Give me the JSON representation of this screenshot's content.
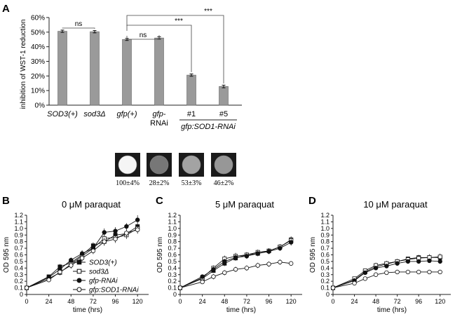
{
  "panels": {
    "A": "A",
    "B": "B",
    "C": "C",
    "D": "D"
  },
  "chart_data": [
    {
      "type": "bar",
      "id": "A",
      "title": "",
      "ylabel": "inhibition of WST-1 reduction",
      "ylim": [
        0,
        60
      ],
      "yticks": [
        "0%",
        "10%",
        "20%",
        "30%",
        "40%",
        "50%",
        "60%"
      ],
      "categories": [
        "SOD3(+)",
        "sod3Δ",
        "gfp(+)",
        "gfp-RNAi",
        "#1",
        "#5"
      ],
      "category_lines": [
        [
          "SOD3(+)"
        ],
        [
          "sod3Δ"
        ],
        [
          "gfp(+)"
        ],
        [
          "gfp-",
          "RNAi"
        ],
        [
          "#1"
        ],
        [
          "#5"
        ]
      ],
      "group_label": "gfp:SOD1-RNAi",
      "values": [
        50.6,
        50.3,
        45.0,
        46.0,
        20.6,
        12.8
      ],
      "errors": [
        0.8,
        0.8,
        0.7,
        0.8,
        0.8,
        0.9
      ],
      "significance": [
        {
          "from": 0,
          "to": 1,
          "label": "ns"
        },
        {
          "from": 2,
          "to": 3,
          "label": "ns"
        },
        {
          "from": 2,
          "to": 4,
          "label": "***"
        },
        {
          "from": 2,
          "to": 5,
          "label": "***"
        }
      ],
      "spot_values": [
        100,
        28,
        53,
        46
      ],
      "spot_labels": [
        "100±4%",
        "28±2%",
        "53±3%",
        "46±2%"
      ]
    },
    {
      "type": "line",
      "id": "B",
      "title": "0 μM paraquat",
      "xlabel": "time (hrs)",
      "ylabel": "OD 595 nm",
      "xlim": [
        0,
        132
      ],
      "ylim": [
        0,
        1.2
      ],
      "xticks": [
        0,
        24,
        48,
        72,
        96,
        120
      ],
      "yticks": [
        "0",
        "0.1",
        "0.2",
        "0.3",
        "0.4",
        "0.5",
        "0.6",
        "0.7",
        "0.8",
        "0.9",
        "1.0",
        "1.1",
        "1.2"
      ],
      "legend_position": "bottom-right",
      "x": [
        0,
        24,
        36,
        48,
        60,
        72,
        84,
        96,
        108,
        120
      ],
      "series": [
        {
          "name": "SOD3(+)",
          "marker": "filled-square",
          "values": [
            0.1,
            0.27,
            0.42,
            0.48,
            0.6,
            0.74,
            0.8,
            0.9,
            0.92,
            1.03
          ],
          "errors": [
            0.02,
            0.03,
            0.04,
            0.05,
            0.05,
            0.05,
            0.06,
            0.05,
            0.05,
            0.05
          ]
        },
        {
          "name": "sod3Δ",
          "marker": "open-square",
          "values": [
            0.1,
            0.24,
            0.33,
            0.46,
            0.58,
            0.7,
            0.85,
            0.86,
            0.9,
            1.0
          ],
          "errors": [
            0.02,
            0.03,
            0.04,
            0.04,
            0.05,
            0.05,
            0.06,
            0.06,
            0.06,
            0.06
          ]
        },
        {
          "name": "gfp-RNAi",
          "marker": "filled-circle",
          "values": [
            0.1,
            0.26,
            0.38,
            0.52,
            0.62,
            0.7,
            0.94,
            0.96,
            1.03,
            1.13
          ],
          "errors": [
            0.02,
            0.03,
            0.04,
            0.04,
            0.05,
            0.06,
            0.06,
            0.06,
            0.05,
            0.07
          ]
        },
        {
          "name": "gfp:SOD1-RNAi",
          "marker": "open-circle",
          "values": [
            0.1,
            0.22,
            0.34,
            0.44,
            0.55,
            0.66,
            0.8,
            0.84,
            0.93,
            0.98
          ],
          "errors": [
            0.02,
            0.03,
            0.04,
            0.05,
            0.05,
            0.05,
            0.06,
            0.06,
            0.06,
            0.06
          ]
        }
      ]
    },
    {
      "type": "line",
      "id": "C",
      "title": "5 μM paraquat",
      "xlabel": "time (hrs)",
      "ylabel": "OD 595 nm",
      "xlim": [
        0,
        132
      ],
      "ylim": [
        0,
        1.2
      ],
      "xticks": [
        0,
        24,
        48,
        72,
        96,
        120
      ],
      "yticks": [
        "0",
        "0.1",
        "0.2",
        "0.3",
        "0.4",
        "0.5",
        "0.6",
        "0.7",
        "0.8",
        "0.9",
        "1.0",
        "1.1",
        "1.2"
      ],
      "x": [
        0,
        24,
        36,
        48,
        60,
        72,
        84,
        96,
        108,
        120
      ],
      "series": [
        {
          "name": "SOD3(+)",
          "marker": "filled-square",
          "values": [
            0.1,
            0.24,
            0.36,
            0.47,
            0.55,
            0.6,
            0.62,
            0.66,
            0.72,
            0.83
          ],
          "errors": [
            0.02,
            0.03,
            0.03,
            0.04,
            0.04,
            0.04,
            0.04,
            0.04,
            0.04,
            0.05
          ]
        },
        {
          "name": "sod3Δ",
          "marker": "open-square",
          "values": [
            0.1,
            0.25,
            0.4,
            0.54,
            0.58,
            0.6,
            0.64,
            0.66,
            0.72,
            0.82
          ],
          "errors": [
            0.02,
            0.03,
            0.04,
            0.05,
            0.05,
            0.04,
            0.04,
            0.04,
            0.04,
            0.05
          ]
        },
        {
          "name": "gfp-RNAi",
          "marker": "filled-circle",
          "values": [
            0.1,
            0.27,
            0.38,
            0.5,
            0.56,
            0.58,
            0.62,
            0.65,
            0.7,
            0.79
          ],
          "errors": [
            0.02,
            0.03,
            0.04,
            0.04,
            0.04,
            0.04,
            0.04,
            0.04,
            0.04,
            0.05
          ]
        },
        {
          "name": "gfp:SOD1-RNAi",
          "marker": "open-circle",
          "values": [
            0.1,
            0.19,
            0.27,
            0.33,
            0.38,
            0.4,
            0.44,
            0.46,
            0.49,
            0.47
          ],
          "errors": [
            0.02,
            0.03,
            0.04,
            0.04,
            0.04,
            0.04,
            0.04,
            0.04,
            0.04,
            0.03
          ]
        }
      ]
    },
    {
      "type": "line",
      "id": "D",
      "title": "10 μM paraquat",
      "xlabel": "time (hrs)",
      "ylabel": "OD 595 nm",
      "xlim": [
        0,
        132
      ],
      "ylim": [
        0,
        1.2
      ],
      "xticks": [
        0,
        24,
        48,
        72,
        96,
        120
      ],
      "yticks": [
        "0",
        "0.1",
        "0.2",
        "0.3",
        "0.4",
        "0.5",
        "0.6",
        "0.7",
        "0.8",
        "0.9",
        "1.0",
        "1.1",
        "1.2"
      ],
      "x": [
        0,
        24,
        36,
        48,
        60,
        72,
        84,
        96,
        108,
        120
      ],
      "series": [
        {
          "name": "SOD3(+)",
          "marker": "filled-square",
          "values": [
            0.1,
            0.22,
            0.34,
            0.42,
            0.46,
            0.5,
            0.54,
            0.56,
            0.56,
            0.56
          ],
          "errors": [
            0.02,
            0.03,
            0.03,
            0.03,
            0.03,
            0.03,
            0.03,
            0.03,
            0.03,
            0.03
          ]
        },
        {
          "name": "sod3Δ",
          "marker": "open-square",
          "values": [
            0.1,
            0.24,
            0.36,
            0.44,
            0.47,
            0.5,
            0.53,
            0.55,
            0.56,
            0.57
          ],
          "errors": [
            0.02,
            0.03,
            0.03,
            0.04,
            0.04,
            0.04,
            0.04,
            0.05,
            0.05,
            0.05
          ]
        },
        {
          "name": "gfp-RNAi",
          "marker": "filled-circle",
          "values": [
            0.1,
            0.21,
            0.33,
            0.4,
            0.43,
            0.47,
            0.5,
            0.5,
            0.51,
            0.5
          ],
          "errors": [
            0.02,
            0.03,
            0.03,
            0.03,
            0.03,
            0.03,
            0.03,
            0.03,
            0.03,
            0.03
          ]
        },
        {
          "name": "gfp:SOD1-RNAi",
          "marker": "open-circle",
          "values": [
            0.1,
            0.17,
            0.24,
            0.3,
            0.33,
            0.34,
            0.34,
            0.34,
            0.34,
            0.34
          ],
          "errors": [
            0.02,
            0.03,
            0.03,
            0.03,
            0.03,
            0.03,
            0.03,
            0.03,
            0.03,
            0.03
          ]
        }
      ]
    }
  ]
}
